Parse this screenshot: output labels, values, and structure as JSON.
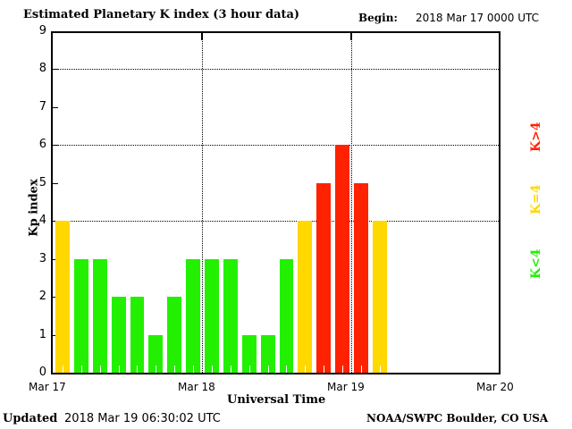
{
  "header": {
    "title": "Estimated Planetary K index (3 hour data)",
    "begin_label": "Begin:",
    "begin_value": "2018 Mar 17 0000 UTC"
  },
  "footer": {
    "updated_label": "Updated",
    "updated_value": "2018 Mar 19 06:30:02 UTC",
    "credit": "NOAA/SWPC Boulder, CO USA"
  },
  "legend": {
    "red": {
      "label": "K>4",
      "color": "#ff2200"
    },
    "yellow": {
      "label": "K=4",
      "color": "#ffd800"
    },
    "green": {
      "label": "K<4",
      "color": "#22f000"
    }
  },
  "chart_data": {
    "type": "bar",
    "title": "Estimated Planetary K index (3 hour data)",
    "xlabel": "Universal Time",
    "ylabel": "Kp index",
    "ylim": [
      0,
      9
    ],
    "yticks": [
      "0",
      "1",
      "2",
      "3",
      "4",
      "5",
      "6",
      "7",
      "8",
      "9"
    ],
    "xticks": [
      "Mar 17",
      "Mar 18",
      "Mar 19",
      "Mar 20"
    ],
    "grid": {
      "horizontal_at": [
        4,
        6,
        8
      ],
      "vertical_at": [
        "Mar 18",
        "Mar 19"
      ],
      "style": "dotted"
    },
    "interval_hours": 3,
    "categories": [
      "Mar 17 00-03",
      "Mar 17 03-06",
      "Mar 17 06-09",
      "Mar 17 09-12",
      "Mar 17 12-15",
      "Mar 17 15-18",
      "Mar 17 18-21",
      "Mar 17 21-24",
      "Mar 18 00-03",
      "Mar 18 03-06",
      "Mar 18 06-09",
      "Mar 18 09-12",
      "Mar 18 12-15",
      "Mar 18 15-18",
      "Mar 18 18-21",
      "Mar 18 21-24",
      "Mar 19 00-03",
      "Mar 19 03-06"
    ],
    "values": [
      4,
      3,
      3,
      2,
      2,
      1,
      2,
      3,
      3,
      3,
      1,
      1,
      3,
      4,
      5,
      6,
      5,
      4
    ],
    "colors": [
      "#ffd800",
      "#22f000",
      "#22f000",
      "#22f000",
      "#22f000",
      "#22f000",
      "#22f000",
      "#22f000",
      "#22f000",
      "#22f000",
      "#22f000",
      "#22f000",
      "#22f000",
      "#ffd800",
      "#ff2200",
      "#ff2200",
      "#ff2200",
      "#ffd800"
    ],
    "legend": [
      "K<4 (green)",
      "K=4 (yellow)",
      "K>4 (red)"
    ],
    "legend_position": "right"
  }
}
